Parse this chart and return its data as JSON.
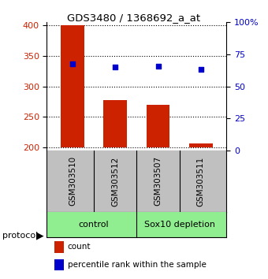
{
  "title": "GDS3480 / 1368692_a_at",
  "samples": [
    "GSM303510",
    "GSM303512",
    "GSM303507",
    "GSM303511"
  ],
  "counts": [
    400,
    277,
    270,
    207
  ],
  "percentile_ranks": [
    67.5,
    65.0,
    65.5,
    63.5
  ],
  "ylim_left": [
    195,
    405
  ],
  "ylim_right": [
    0,
    100
  ],
  "yticks_left": [
    200,
    250,
    300,
    350,
    400
  ],
  "yticks_right": [
    0,
    25,
    50,
    75,
    100
  ],
  "bar_color": "#CC2200",
  "dot_color": "#0000CC",
  "bar_bottom": 200,
  "bg_color": "#ffffff",
  "sample_bg": "#C0C0C0",
  "group_bg": "#90EE90",
  "group1_name": "control",
  "group2_name": "Sox10 depletion",
  "legend_count_color": "#CC2200",
  "legend_pct_color": "#0000CC",
  "protocol_label": "protocol",
  "legend_count_text": "count",
  "legend_pct_text": "percentile rank within the sample"
}
